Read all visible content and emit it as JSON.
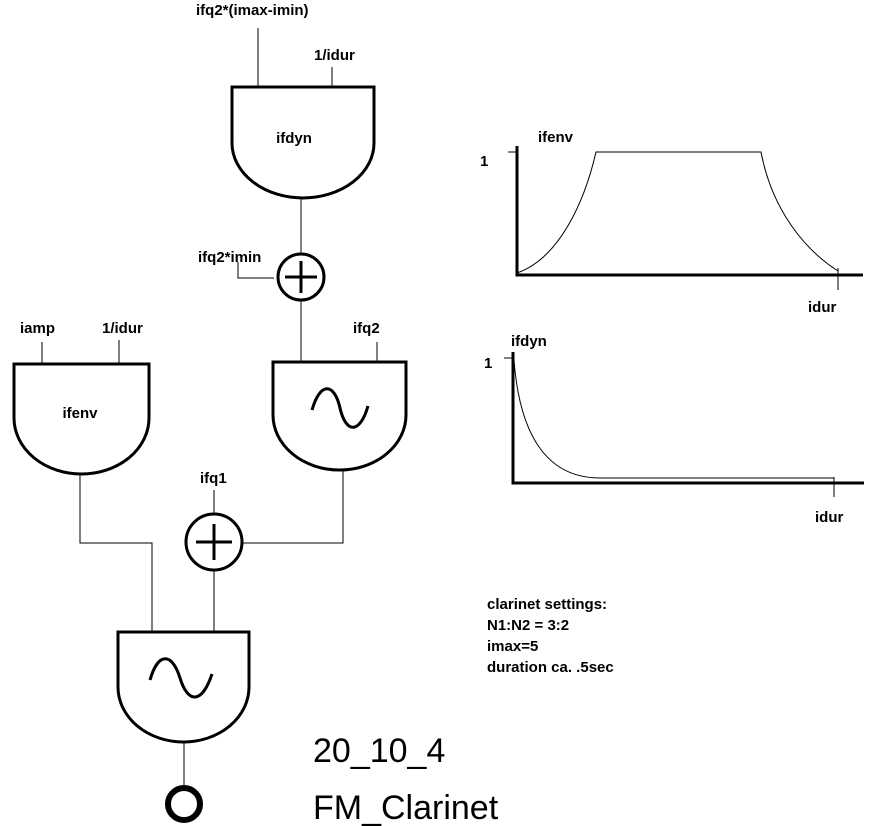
{
  "labels": {
    "top_input_a": "ifq2*(imax-imin)",
    "top_input_b": "1/idur",
    "ifdyn_unit": "ifdyn",
    "adder1_input": "ifq2*imin",
    "osc2_input": "ifq2",
    "env_input_a": "iamp",
    "env_input_b": "1/idur",
    "ifenv_unit": "ifenv",
    "adder2_input": "ifq1"
  },
  "graphs": {
    "ifenv": {
      "title": "ifenv",
      "y_tick": "1",
      "x_tick": "idur"
    },
    "ifdyn": {
      "title": "ifdyn",
      "y_tick": "1",
      "x_tick": "idur"
    }
  },
  "notes": [
    "clarinet settings:",
    "N1:N2 = 3:2",
    "imax=5",
    "duration ca. .5sec"
  ],
  "title": {
    "number": "20_10_4",
    "name": "FM_Clarinet"
  }
}
